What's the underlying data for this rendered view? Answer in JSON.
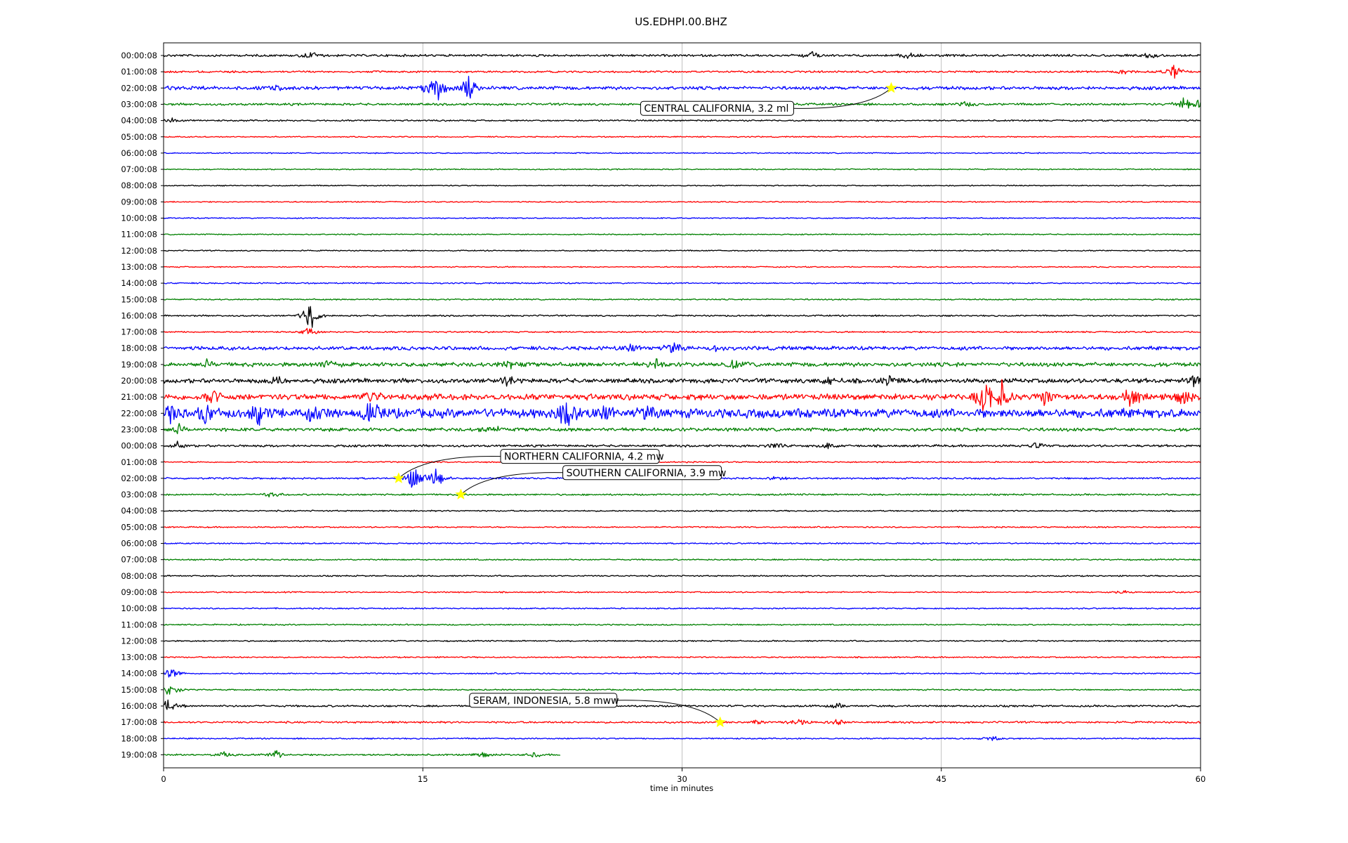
{
  "chart_data": {
    "type": "line",
    "title": "US.EDHPI.00.BHZ",
    "xlabel": "time in minutes",
    "ylabel": "",
    "xlim": [
      0,
      60
    ],
    "xticks": [
      0,
      15,
      30,
      45,
      60
    ],
    "grid": "vertical lines at x ticks",
    "line_colors": [
      "#000000",
      "#ff0000",
      "#0000ff",
      "#008000"
    ],
    "marker_color": "#ffff00",
    "rows": [
      {
        "label": "00:00:08",
        "end": 60,
        "activity": 0.6,
        "bursts": [
          [
            8.5,
            1.5
          ],
          [
            37.5,
            1.2
          ],
          [
            43,
            1.3
          ],
          [
            57,
            1.0
          ]
        ]
      },
      {
        "label": "01:00:08",
        "end": 60,
        "activity": 0.5,
        "bursts": [
          [
            55.5,
            1.0
          ],
          [
            58.5,
            3.5
          ]
        ]
      },
      {
        "label": "02:00:08",
        "end": 60,
        "activity": 0.9,
        "bursts": [
          [
            0.8,
            0.8
          ],
          [
            6.5,
            0.7
          ],
          [
            15.2,
            1.5
          ],
          [
            15.8,
            6
          ],
          [
            17.6,
            5
          ]
        ]
      },
      {
        "label": "03:00:08",
        "end": 60,
        "activity": 0.6,
        "bursts": [
          [
            46.5,
            1.0
          ],
          [
            59,
            2.5
          ],
          [
            59.9,
            3.5
          ]
        ]
      },
      {
        "label": "04:00:08",
        "end": 60,
        "activity": 0.4,
        "bursts": [
          [
            0.5,
            1.0
          ]
        ]
      },
      {
        "label": "05:00:08",
        "end": 60,
        "activity": 0.3,
        "bursts": []
      },
      {
        "label": "06:00:08",
        "end": 60,
        "activity": 0.3,
        "bursts": []
      },
      {
        "label": "07:00:08",
        "end": 60,
        "activity": 0.3,
        "bursts": []
      },
      {
        "label": "08:00:08",
        "end": 60,
        "activity": 0.3,
        "bursts": []
      },
      {
        "label": "09:00:08",
        "end": 60,
        "activity": 0.3,
        "bursts": []
      },
      {
        "label": "10:00:08",
        "end": 60,
        "activity": 0.3,
        "bursts": []
      },
      {
        "label": "11:00:08",
        "end": 60,
        "activity": 0.3,
        "bursts": []
      },
      {
        "label": "12:00:08",
        "end": 60,
        "activity": 0.3,
        "bursts": []
      },
      {
        "label": "13:00:08",
        "end": 60,
        "activity": 0.3,
        "bursts": []
      },
      {
        "label": "14:00:08",
        "end": 60,
        "activity": 0.35,
        "bursts": []
      },
      {
        "label": "15:00:08",
        "end": 60,
        "activity": 0.35,
        "bursts": []
      },
      {
        "label": "16:00:08",
        "end": 60,
        "activity": 0.4,
        "bursts": [
          [
            8.5,
            5.5
          ]
        ]
      },
      {
        "label": "17:00:08",
        "end": 60,
        "activity": 0.4,
        "bursts": [
          [
            8.4,
            1.5
          ]
        ]
      },
      {
        "label": "18:00:08",
        "end": 60,
        "activity": 1.0,
        "bursts": [
          [
            27,
            1.5
          ],
          [
            29.5,
            2.0
          ],
          [
            32,
            1.0
          ]
        ]
      },
      {
        "label": "19:00:08",
        "end": 60,
        "activity": 1.1,
        "bursts": [
          [
            2.5,
            1.2
          ],
          [
            9.5,
            1.8
          ],
          [
            20,
            1.5
          ],
          [
            28.5,
            2.0
          ],
          [
            33,
            1.5
          ]
        ]
      },
      {
        "label": "20:00:08",
        "end": 60,
        "activity": 1.2,
        "bursts": [
          [
            6.5,
            1.5
          ],
          [
            20,
            1.8
          ],
          [
            38.5,
            1.5
          ],
          [
            42,
            1.5
          ],
          [
            59.6,
            2.0
          ]
        ]
      },
      {
        "label": "21:00:08",
        "end": 60,
        "activity": 1.6,
        "bursts": [
          [
            2.8,
            3.0
          ],
          [
            12,
            3.0
          ],
          [
            47.5,
            7.0
          ],
          [
            48.5,
            5.0
          ],
          [
            51,
            3.5
          ],
          [
            56,
            3.5
          ],
          [
            59,
            3.0
          ]
        ]
      },
      {
        "label": "22:00:08",
        "end": 60,
        "activity": 2.4,
        "bursts": [
          [
            0.5,
            3.0
          ],
          [
            2.5,
            4.0
          ],
          [
            5.5,
            3.5
          ],
          [
            8.5,
            4.0
          ],
          [
            12,
            4.0
          ],
          [
            23.3,
            5.5
          ],
          [
            25.5,
            2.5
          ],
          [
            28,
            1.5
          ],
          [
            37,
            1.0
          ]
        ]
      },
      {
        "label": "23:00:08",
        "end": 60,
        "activity": 0.9,
        "bursts": [
          [
            0.8,
            2.0
          ],
          [
            19,
            1.5
          ]
        ]
      },
      {
        "label": "00:00:08",
        "end": 60,
        "activity": 0.6,
        "bursts": [
          [
            0.8,
            1.2
          ],
          [
            35.5,
            1.5
          ],
          [
            38.5,
            1.2
          ],
          [
            50.5,
            1.0
          ]
        ]
      },
      {
        "label": "01:00:08",
        "end": 60,
        "activity": 0.35,
        "bursts": []
      },
      {
        "label": "02:00:08",
        "end": 60,
        "activity": 0.45,
        "bursts": [
          [
            14.5,
            5.0
          ],
          [
            15.8,
            4.0
          ],
          [
            35.5,
            0.8
          ]
        ]
      },
      {
        "label": "03:00:08",
        "end": 60,
        "activity": 0.45,
        "bursts": [
          [
            6.3,
            1.2
          ]
        ]
      },
      {
        "label": "04:00:08",
        "end": 60,
        "activity": 0.35,
        "bursts": []
      },
      {
        "label": "05:00:08",
        "end": 60,
        "activity": 0.35,
        "bursts": []
      },
      {
        "label": "06:00:08",
        "end": 60,
        "activity": 0.35,
        "bursts": []
      },
      {
        "label": "07:00:08",
        "end": 60,
        "activity": 0.35,
        "bursts": []
      },
      {
        "label": "08:00:08",
        "end": 60,
        "activity": 0.35,
        "bursts": []
      },
      {
        "label": "09:00:08",
        "end": 60,
        "activity": 0.35,
        "bursts": [
          [
            55.5,
            0.8
          ]
        ]
      },
      {
        "label": "10:00:08",
        "end": 60,
        "activity": 0.35,
        "bursts": []
      },
      {
        "label": "11:00:08",
        "end": 60,
        "activity": 0.35,
        "bursts": []
      },
      {
        "label": "12:00:08",
        "end": 60,
        "activity": 0.35,
        "bursts": []
      },
      {
        "label": "13:00:08",
        "end": 60,
        "activity": 0.35,
        "bursts": []
      },
      {
        "label": "14:00:08",
        "end": 60,
        "activity": 0.35,
        "bursts": [
          [
            0.4,
            2.5
          ]
        ]
      },
      {
        "label": "15:00:08",
        "end": 60,
        "activity": 0.35,
        "bursts": [
          [
            0.4,
            3.0
          ]
        ]
      },
      {
        "label": "16:00:08",
        "end": 60,
        "activity": 0.5,
        "bursts": [
          [
            0.4,
            3.5
          ],
          [
            39,
            1.0
          ]
        ]
      },
      {
        "label": "17:00:08",
        "end": 60,
        "activity": 0.5,
        "bursts": [
          [
            34.5,
            1.0
          ],
          [
            36.8,
            1.8
          ],
          [
            39,
            1.0
          ]
        ]
      },
      {
        "label": "18:00:08",
        "end": 60,
        "activity": 0.35,
        "bursts": [
          [
            48,
            1.0
          ]
        ]
      },
      {
        "label": "19:00:08",
        "end": 23,
        "activity": 0.45,
        "bursts": [
          [
            3.5,
            1.0
          ],
          [
            6.5,
            1.5
          ],
          [
            18.5,
            1.0
          ],
          [
            21.5,
            1.0
          ]
        ]
      }
    ],
    "events": [
      {
        "label": "CENTRAL CALIFORNIA, 3.2 ml",
        "row": 2,
        "x": 42.1,
        "label_x": 27.6,
        "label_row": 3.25
      },
      {
        "label": "NORTHERN CALIFORNIA, 4.2 mw",
        "row": 26,
        "x": 13.6,
        "label_x": 19.5,
        "label_row": 24.65
      },
      {
        "label": "SOUTHERN CALIFORNIA, 3.9 mw",
        "row": 27,
        "x": 17.2,
        "label_x": 23.1,
        "label_row": 25.65
      },
      {
        "label": "SERAM, INDONESIA, 5.8 mww",
        "row": 41,
        "x": 32.2,
        "label_x": 17.7,
        "label_row": 39.65
      }
    ]
  }
}
